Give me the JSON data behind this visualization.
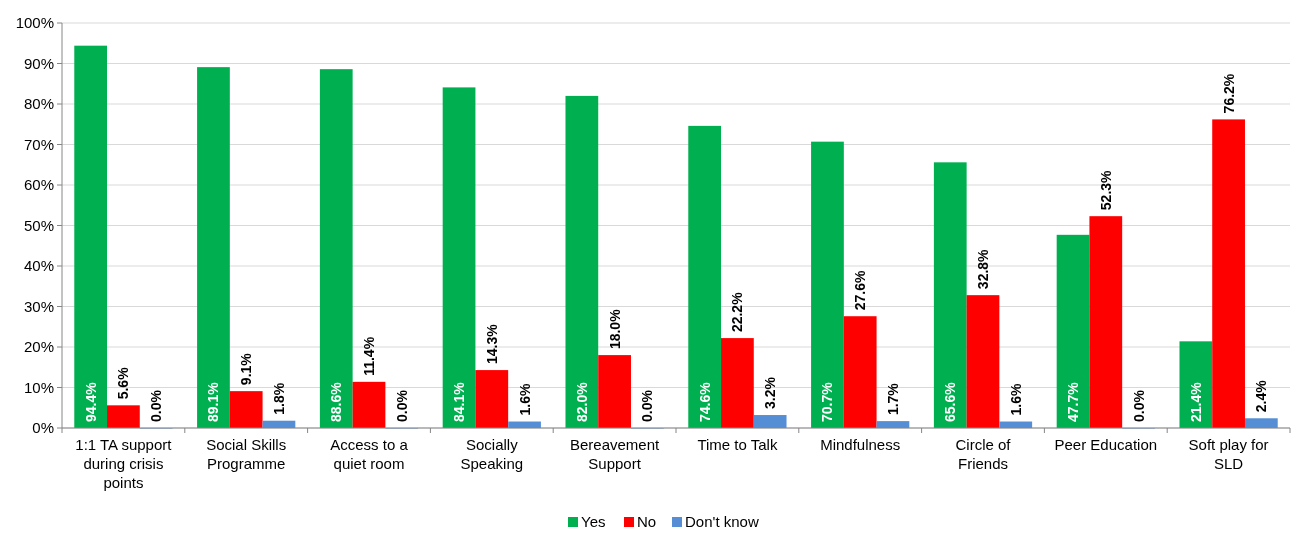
{
  "chart_data": {
    "type": "bar",
    "categories": [
      "1:1 TA support during crisis points",
      "Social Skills Programme",
      "Access to a quiet room",
      "Socially Speaking",
      "Bereavement Support",
      "Time to Talk",
      "Mindfulness",
      "Circle of Friends",
      "Peer Education",
      "Soft play for SLD"
    ],
    "series": [
      {
        "name": "Yes",
        "color": "#00b050",
        "values": [
          94.4,
          89.1,
          88.6,
          84.1,
          82.0,
          74.6,
          70.7,
          65.6,
          47.7,
          21.4
        ],
        "value_labels": [
          "94.4%",
          "89.1%",
          "88.6%",
          "84.1%",
          "82.0%",
          "74.6%",
          "70.7%",
          "65.6%",
          "47.7%",
          "21.4%"
        ]
      },
      {
        "name": "No",
        "color": "#ff0000",
        "values": [
          5.6,
          9.1,
          11.4,
          14.3,
          18.0,
          22.2,
          27.6,
          32.8,
          52.3,
          76.2
        ],
        "value_labels": [
          "5.6%",
          "9.1%",
          "11.4%",
          "14.3%",
          "18.0%",
          "22.2%",
          "27.6%",
          "32.8%",
          "52.3%",
          "76.2%"
        ]
      },
      {
        "name": "Don't know",
        "color": "#558ed5",
        "values": [
          0.0,
          1.8,
          0.0,
          1.6,
          0.0,
          3.2,
          1.7,
          1.6,
          0.0,
          2.4
        ],
        "value_labels": [
          "0.0%",
          "1.8%",
          "0.0%",
          "1.6%",
          "0.0%",
          "3.2%",
          "1.7%",
          "1.6%",
          "0.0%",
          "2.4%"
        ]
      }
    ],
    "ylim": [
      0,
      100
    ],
    "yticks": [
      {
        "value": 0,
        "label": "0%"
      },
      {
        "value": 10,
        "label": "10%"
      },
      {
        "value": 20,
        "label": "20%"
      },
      {
        "value": 30,
        "label": "30%"
      },
      {
        "value": 40,
        "label": "40%"
      },
      {
        "value": 50,
        "label": "50%"
      },
      {
        "value": 60,
        "label": "60%"
      },
      {
        "value": 70,
        "label": "70%"
      },
      {
        "value": 80,
        "label": "80%"
      },
      {
        "value": 90,
        "label": "90%"
      },
      {
        "value": 100,
        "label": "100%"
      }
    ],
    "grid": "y",
    "legend": "bottom"
  }
}
